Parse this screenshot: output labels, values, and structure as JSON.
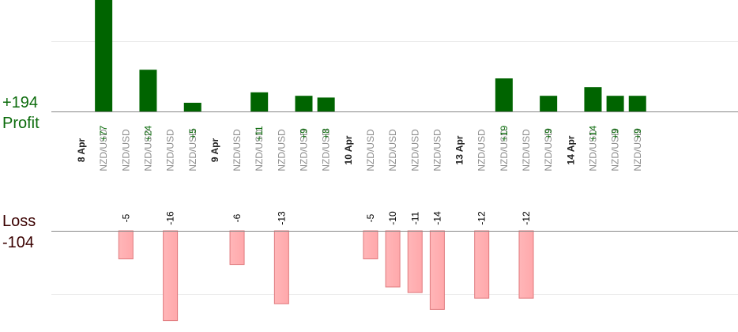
{
  "summary": {
    "profit_total": "+194",
    "profit_label": "Profit",
    "loss_label": "Loss",
    "loss_total": "-104"
  },
  "colors": {
    "profit_bar": "#006400",
    "profit_text": "#0b6b0b",
    "loss_fill": "#ffb6b8",
    "loss_stroke": "#e07a7e",
    "loss_text": "#3a0000",
    "pair_text": "#8c8c8c",
    "date_text": "#222222",
    "axis": "#888888",
    "grid": "#ececec"
  },
  "chart_data": {
    "type": "bar",
    "grid": true,
    "slots": [
      {
        "kind": "date",
        "label": "8 Apr"
      },
      {
        "kind": "trade",
        "label": "NZD/USD",
        "value": 77
      },
      {
        "kind": "trade",
        "label": "NZD/USD",
        "value": -5
      },
      {
        "kind": "trade",
        "label": "NZD/USD",
        "value": 24
      },
      {
        "kind": "trade",
        "label": "NZD/USD",
        "value": -16
      },
      {
        "kind": "trade",
        "label": "NZD/USD",
        "value": 5
      },
      {
        "kind": "date",
        "label": "9 Apr"
      },
      {
        "kind": "trade",
        "label": "NZD/USD",
        "value": -6
      },
      {
        "kind": "trade",
        "label": "NZD/USD",
        "value": 11
      },
      {
        "kind": "trade",
        "label": "NZD/USD",
        "value": -13
      },
      {
        "kind": "trade",
        "label": "NZD/USD",
        "value": 9
      },
      {
        "kind": "trade",
        "label": "NZD/USD",
        "value": 8
      },
      {
        "kind": "date",
        "label": "10 Apr"
      },
      {
        "kind": "trade",
        "label": "NZD/USD",
        "value": -5
      },
      {
        "kind": "trade",
        "label": "NZD/USD",
        "value": -10
      },
      {
        "kind": "trade",
        "label": "NZD/USD",
        "value": -11
      },
      {
        "kind": "trade",
        "label": "NZD/USD",
        "value": -14
      },
      {
        "kind": "date",
        "label": "13 Apr"
      },
      {
        "kind": "trade",
        "label": "NZD/USD",
        "value": -12
      },
      {
        "kind": "trade",
        "label": "NZD/USD",
        "value": 19
      },
      {
        "kind": "trade",
        "label": "NZD/USD",
        "value": -12
      },
      {
        "kind": "trade",
        "label": "NZD/USD",
        "value": 9
      },
      {
        "kind": "date",
        "label": "14 Apr"
      },
      {
        "kind": "trade",
        "label": "NZD/USD",
        "value": 14
      },
      {
        "kind": "trade",
        "label": "NZD/USD",
        "value": 9
      },
      {
        "kind": "trade",
        "label": "NZD/USD",
        "value": 9
      }
    ]
  }
}
